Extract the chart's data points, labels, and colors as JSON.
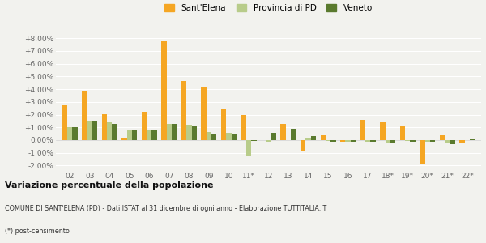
{
  "categories": [
    "02",
    "03",
    "04",
    "05",
    "06",
    "07",
    "08",
    "09",
    "10",
    "11*",
    "12",
    "13",
    "14",
    "15",
    "16",
    "17",
    "18*",
    "19*",
    "20*",
    "21*",
    "22*"
  ],
  "sant_elena": [
    2.7,
    3.9,
    2.05,
    0.2,
    2.25,
    7.75,
    4.65,
    4.1,
    2.4,
    1.95,
    0.0,
    1.3,
    -0.9,
    0.35,
    -0.1,
    1.6,
    1.45,
    1.1,
    -1.85,
    0.35,
    -0.25
  ],
  "provincia_pd": [
    1.0,
    1.5,
    1.45,
    0.85,
    0.75,
    1.25,
    1.2,
    0.65,
    0.55,
    -1.3,
    -0.1,
    0.0,
    0.2,
    -0.05,
    -0.1,
    -0.15,
    -0.2,
    -0.05,
    -0.1,
    -0.25,
    0.0
  ],
  "veneto": [
    1.0,
    1.5,
    1.25,
    0.75,
    0.75,
    1.25,
    1.1,
    0.5,
    0.45,
    -0.05,
    0.6,
    0.9,
    0.3,
    -0.1,
    -0.1,
    -0.15,
    -0.2,
    -0.1,
    -0.1,
    -0.3,
    0.15
  ],
  "color_sant_elena": "#f5a623",
  "color_provincia": "#b8cc8a",
  "color_veneto": "#5a7a2e",
  "bg_color": "#f2f2ee",
  "grid_color": "#ffffff",
  "title_main": "Variazione percentuale della popolazione",
  "subtitle": "COMUNE DI SANT'ELENA (PD) - Dati ISTAT al 31 dicembre di ogni anno - Elaborazione TUTTITALIA.IT",
  "footnote": "(*) post-censimento",
  "ylim_min": -2.35,
  "ylim_max": 8.7,
  "yticks": [
    -2.0,
    -1.0,
    0.0,
    1.0,
    2.0,
    3.0,
    4.0,
    5.0,
    6.0,
    7.0,
    8.0
  ]
}
